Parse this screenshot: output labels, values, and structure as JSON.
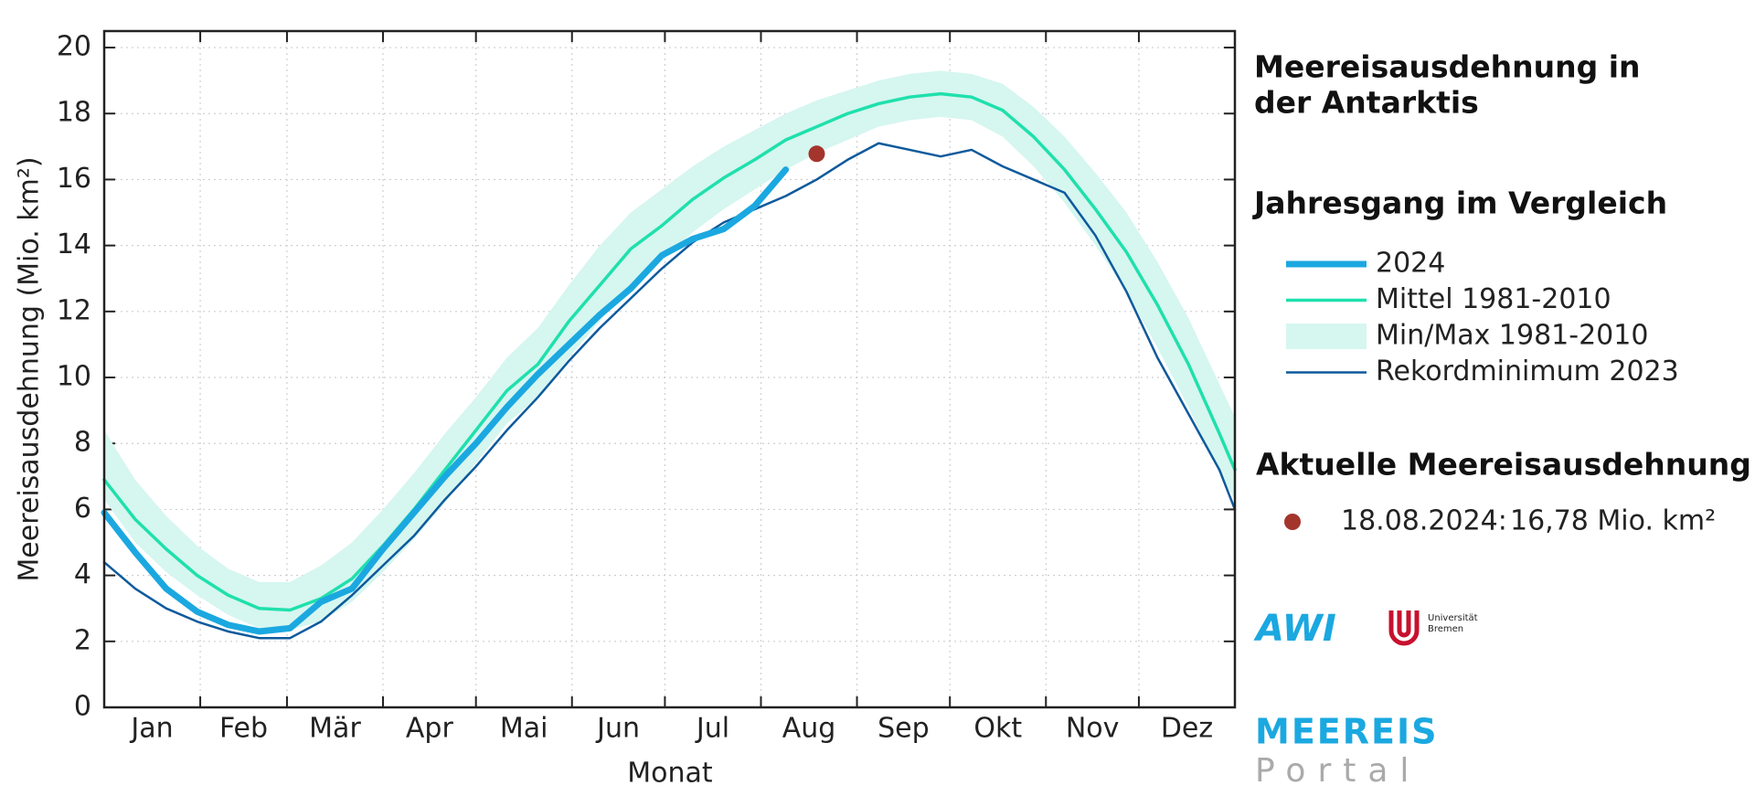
{
  "chart_data": {
    "type": "line",
    "title": [
      "Meereisausdehnung in",
      "der Antarktis"
    ],
    "x_label": "Monat",
    "y_label": "Meereisausdehnung (Mio. km²)",
    "legend_title": "Jahresgang im Vergleich",
    "xlim": [
      1,
      366
    ],
    "xticks": [
      {
        "value": 1,
        "label": "Jan"
      },
      {
        "value": 32,
        "label": "Feb"
      },
      {
        "value": 60,
        "label": "Mär"
      },
      {
        "value": 91,
        "label": "Apr"
      },
      {
        "value": 121,
        "label": "Mai"
      },
      {
        "value": 152,
        "label": "Jun"
      },
      {
        "value": 182,
        "label": "Jul"
      },
      {
        "value": 213,
        "label": "Aug"
      },
      {
        "value": 244,
        "label": "Sep"
      },
      {
        "value": 274,
        "label": "Okt"
      },
      {
        "value": 305,
        "label": "Nov"
      },
      {
        "value": 335,
        "label": "Dez"
      }
    ],
    "ylim": [
      0,
      20.5
    ],
    "yticks": [
      0,
      2,
      4,
      6,
      8,
      10,
      12,
      14,
      16,
      18,
      20
    ],
    "grid": true,
    "x": [
      1,
      11,
      21,
      31,
      41,
      51,
      61,
      71,
      81,
      91,
      101,
      111,
      121,
      131,
      141,
      151,
      161,
      171,
      181,
      191,
      201,
      211,
      221,
      231,
      241,
      251,
      261,
      271,
      281,
      291,
      301,
      311,
      321,
      331,
      341,
      351,
      361,
      366
    ],
    "band": {
      "name": "Min/Max 1981-2010",
      "color": "#d6f6f0",
      "upper": [
        8.4,
        6.9,
        5.8,
        4.9,
        4.2,
        3.8,
        3.8,
        4.3,
        5.0,
        6.0,
        7.1,
        8.3,
        9.4,
        10.6,
        11.5,
        12.8,
        14.0,
        15.0,
        15.7,
        16.4,
        17.0,
        17.5,
        18.0,
        18.4,
        18.7,
        19.0,
        19.2,
        19.3,
        19.2,
        18.9,
        18.2,
        17.3,
        16.2,
        15.0,
        13.5,
        11.8,
        9.8,
        8.8
      ],
      "lower": [
        6.3,
        5.0,
        4.1,
        3.4,
        2.8,
        2.4,
        2.35,
        2.6,
        3.2,
        4.1,
        5.1,
        6.2,
        7.4,
        8.6,
        9.4,
        10.6,
        11.7,
        12.8,
        13.6,
        14.4,
        15.1,
        15.7,
        16.3,
        16.8,
        17.2,
        17.6,
        17.8,
        17.9,
        17.8,
        17.3,
        16.4,
        15.3,
        14.0,
        12.6,
        10.9,
        9.1,
        7.1,
        6.3
      ]
    },
    "series": [
      {
        "name": "2024",
        "color": "#1ba8e0",
        "width": 7,
        "values": [
          5.9,
          4.7,
          3.6,
          2.9,
          2.5,
          2.3,
          2.4,
          3.2,
          3.6,
          4.8,
          5.9,
          7.0,
          8.0,
          9.1,
          10.1,
          11.0,
          11.9,
          12.7,
          13.7,
          14.2,
          14.5,
          15.2,
          16.3,
          null,
          null,
          null,
          null,
          null,
          null,
          null,
          null,
          null,
          null,
          null,
          null,
          null,
          null,
          null
        ]
      },
      {
        "name": "Mittel 1981-2010",
        "color": "#1fe0ac",
        "width": 3.5,
        "values": [
          6.9,
          5.7,
          4.8,
          4.0,
          3.4,
          3.0,
          2.95,
          3.3,
          3.9,
          4.9,
          6.0,
          7.2,
          8.4,
          9.6,
          10.4,
          11.7,
          12.8,
          13.9,
          14.6,
          15.4,
          16.05,
          16.6,
          17.2,
          17.6,
          18.0,
          18.3,
          18.5,
          18.6,
          18.5,
          18.1,
          17.3,
          16.3,
          15.1,
          13.8,
          12.2,
          10.4,
          8.3,
          7.2
        ]
      },
      {
        "name": "Rekordminimum 2023",
        "color": "#0e5a9c",
        "width": 2.5,
        "values": [
          4.4,
          3.6,
          3.0,
          2.6,
          2.3,
          2.1,
          2.1,
          2.6,
          3.4,
          4.3,
          5.2,
          6.3,
          7.3,
          8.4,
          9.4,
          10.5,
          11.5,
          12.4,
          13.3,
          14.1,
          14.7,
          15.1,
          15.5,
          16.0,
          16.6,
          17.1,
          16.9,
          16.7,
          16.9,
          16.4,
          16.0,
          15.6,
          14.3,
          12.6,
          10.6,
          8.9,
          7.2,
          6.0
        ]
      }
    ],
    "current": {
      "title": "Aktuelle Meereisausdehnung",
      "label": "18.08.2024:",
      "value": 16.78,
      "value_label": "16,78 Mio. km²",
      "color": "#a3352c"
    }
  },
  "branding": {
    "awi": "AWI",
    "university": [
      "Universität",
      "Bremen"
    ],
    "portal": [
      "MEEREIS",
      "Portal"
    ]
  }
}
